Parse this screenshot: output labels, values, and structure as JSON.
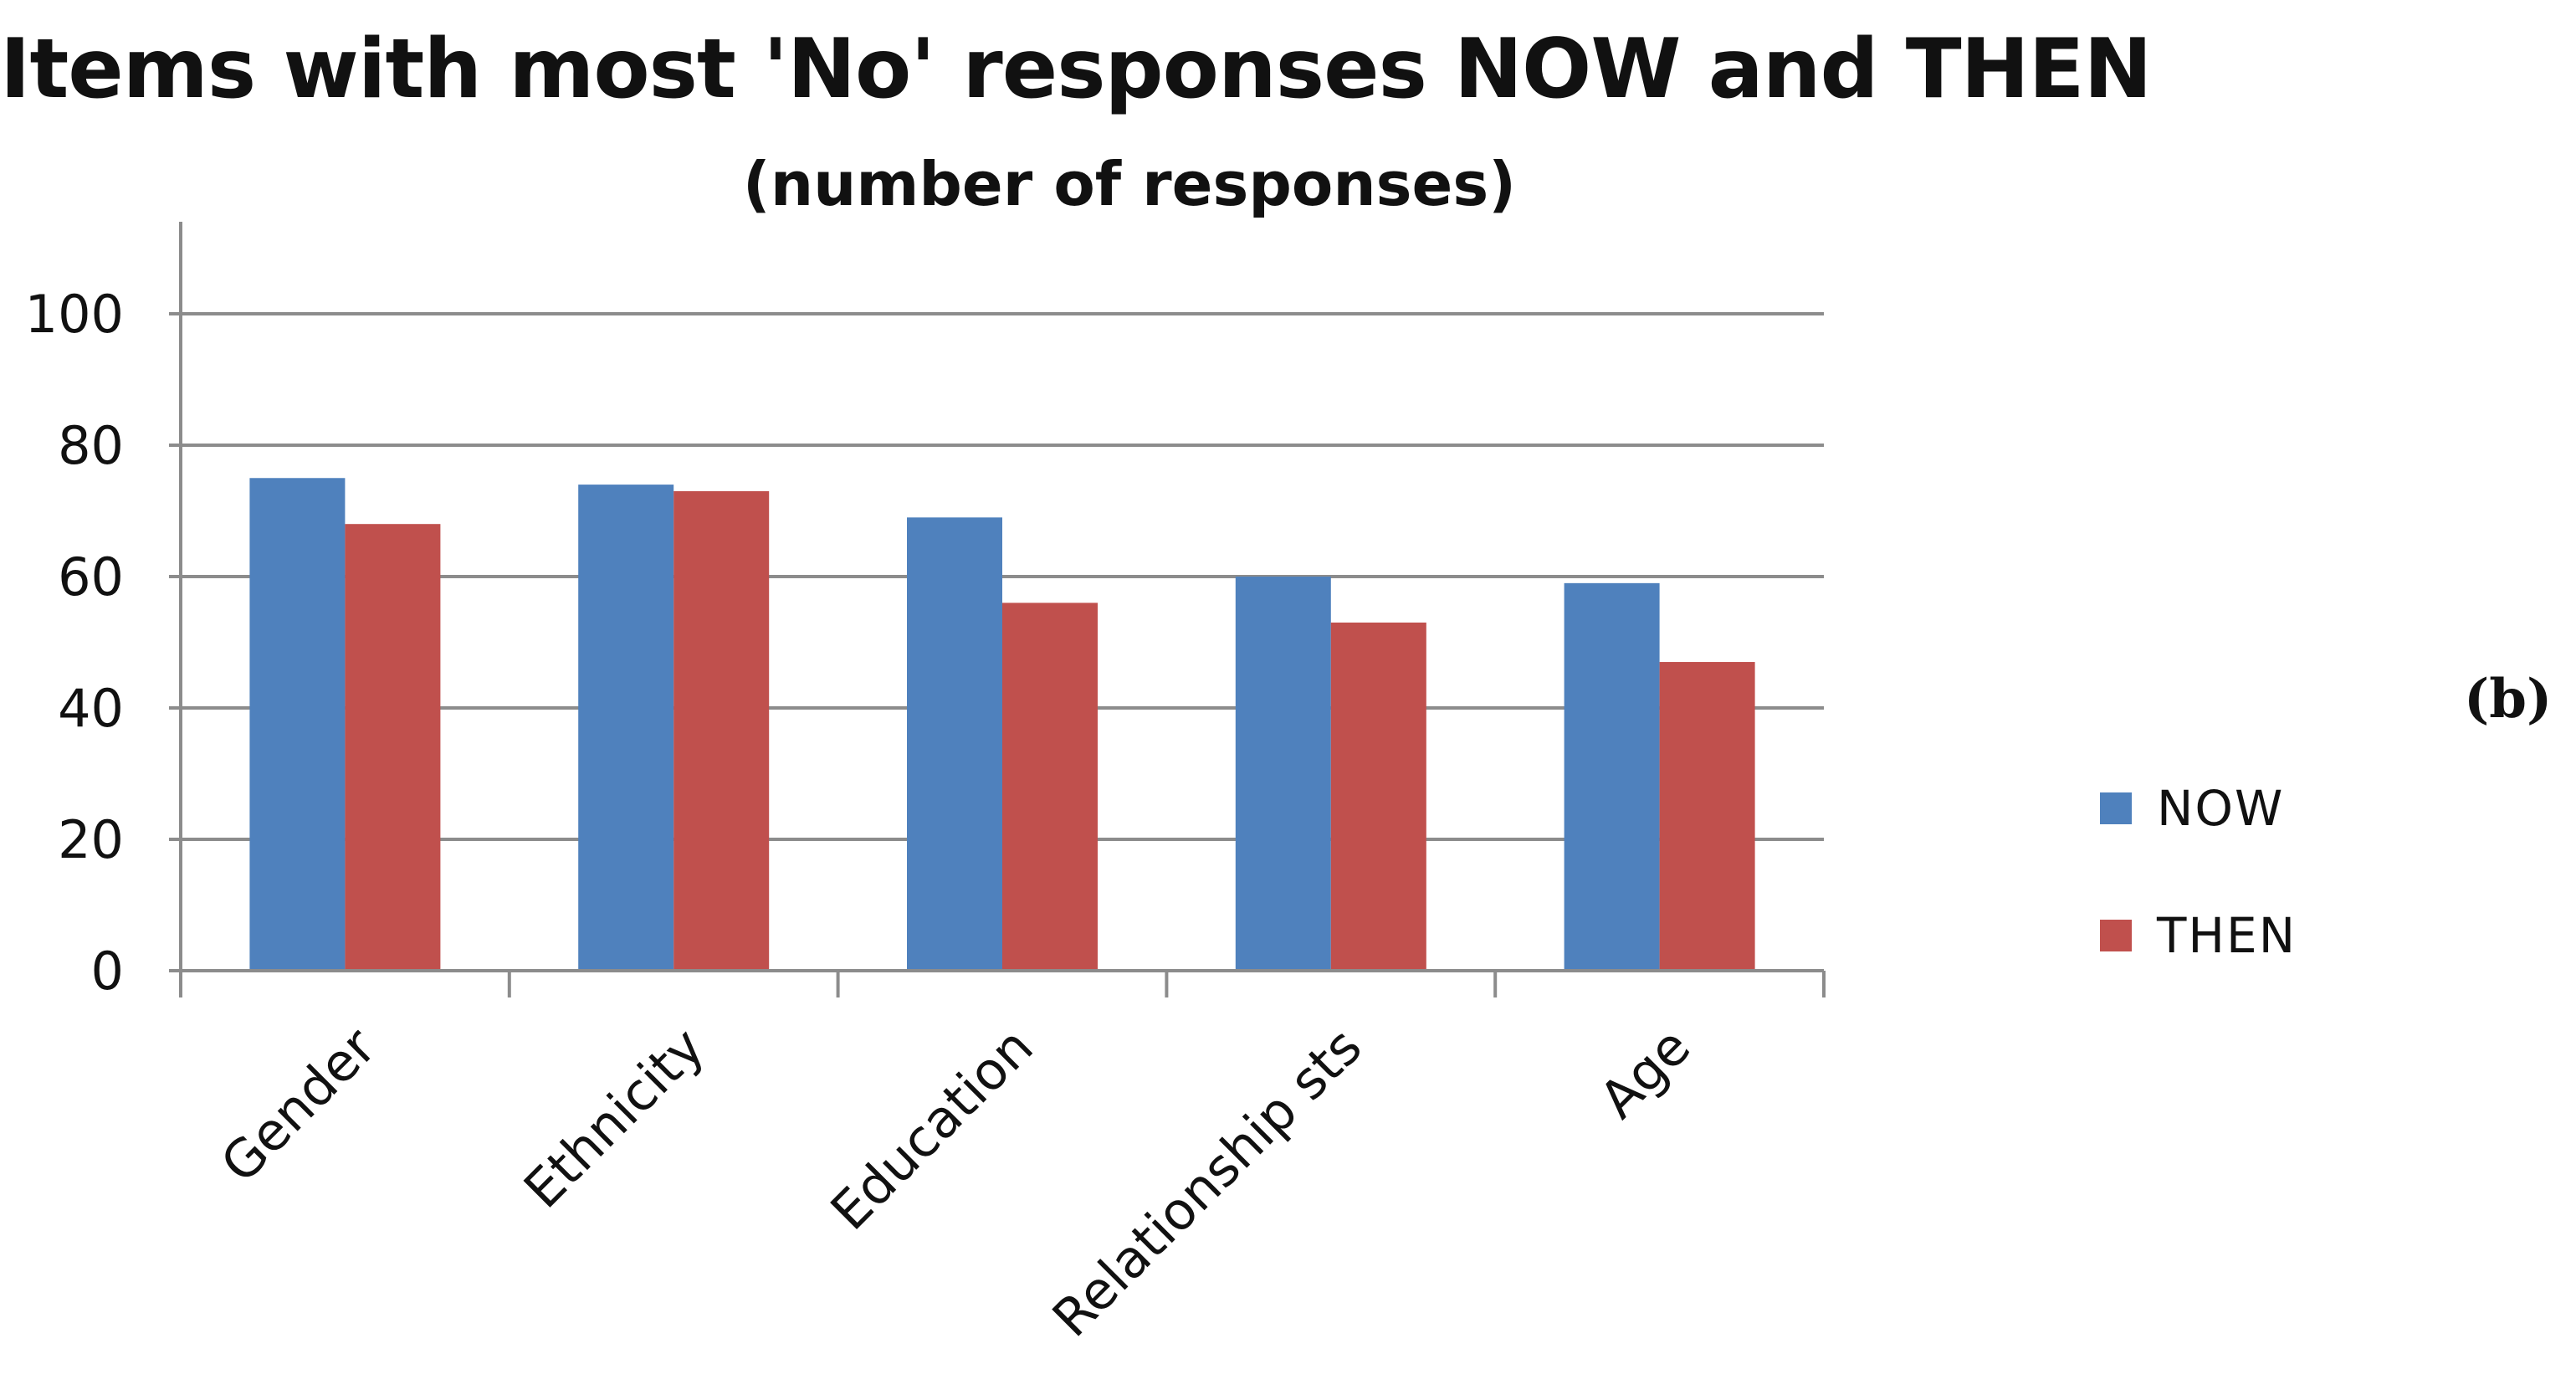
{
  "panel_tag": "(b)",
  "chart_data": {
    "type": "bar",
    "title": "Items with most 'No' responses NOW and THEN",
    "subtitle": "(number of responses)",
    "xlabel": "",
    "ylabel": "",
    "categories": [
      "Gender",
      "Ethnicity",
      "Education",
      "Relationship sts",
      "Age"
    ],
    "series": [
      {
        "name": "NOW",
        "color": "#4f81bd",
        "values": [
          75,
          74,
          69,
          60,
          59
        ]
      },
      {
        "name": "THEN",
        "color": "#c0504d",
        "values": [
          68,
          73,
          56,
          53,
          47
        ]
      }
    ],
    "ylim": [
      0,
      100
    ],
    "yticks": [
      "0",
      "20",
      "40",
      "60",
      "80",
      "100"
    ],
    "grid": true,
    "legend": "right"
  }
}
